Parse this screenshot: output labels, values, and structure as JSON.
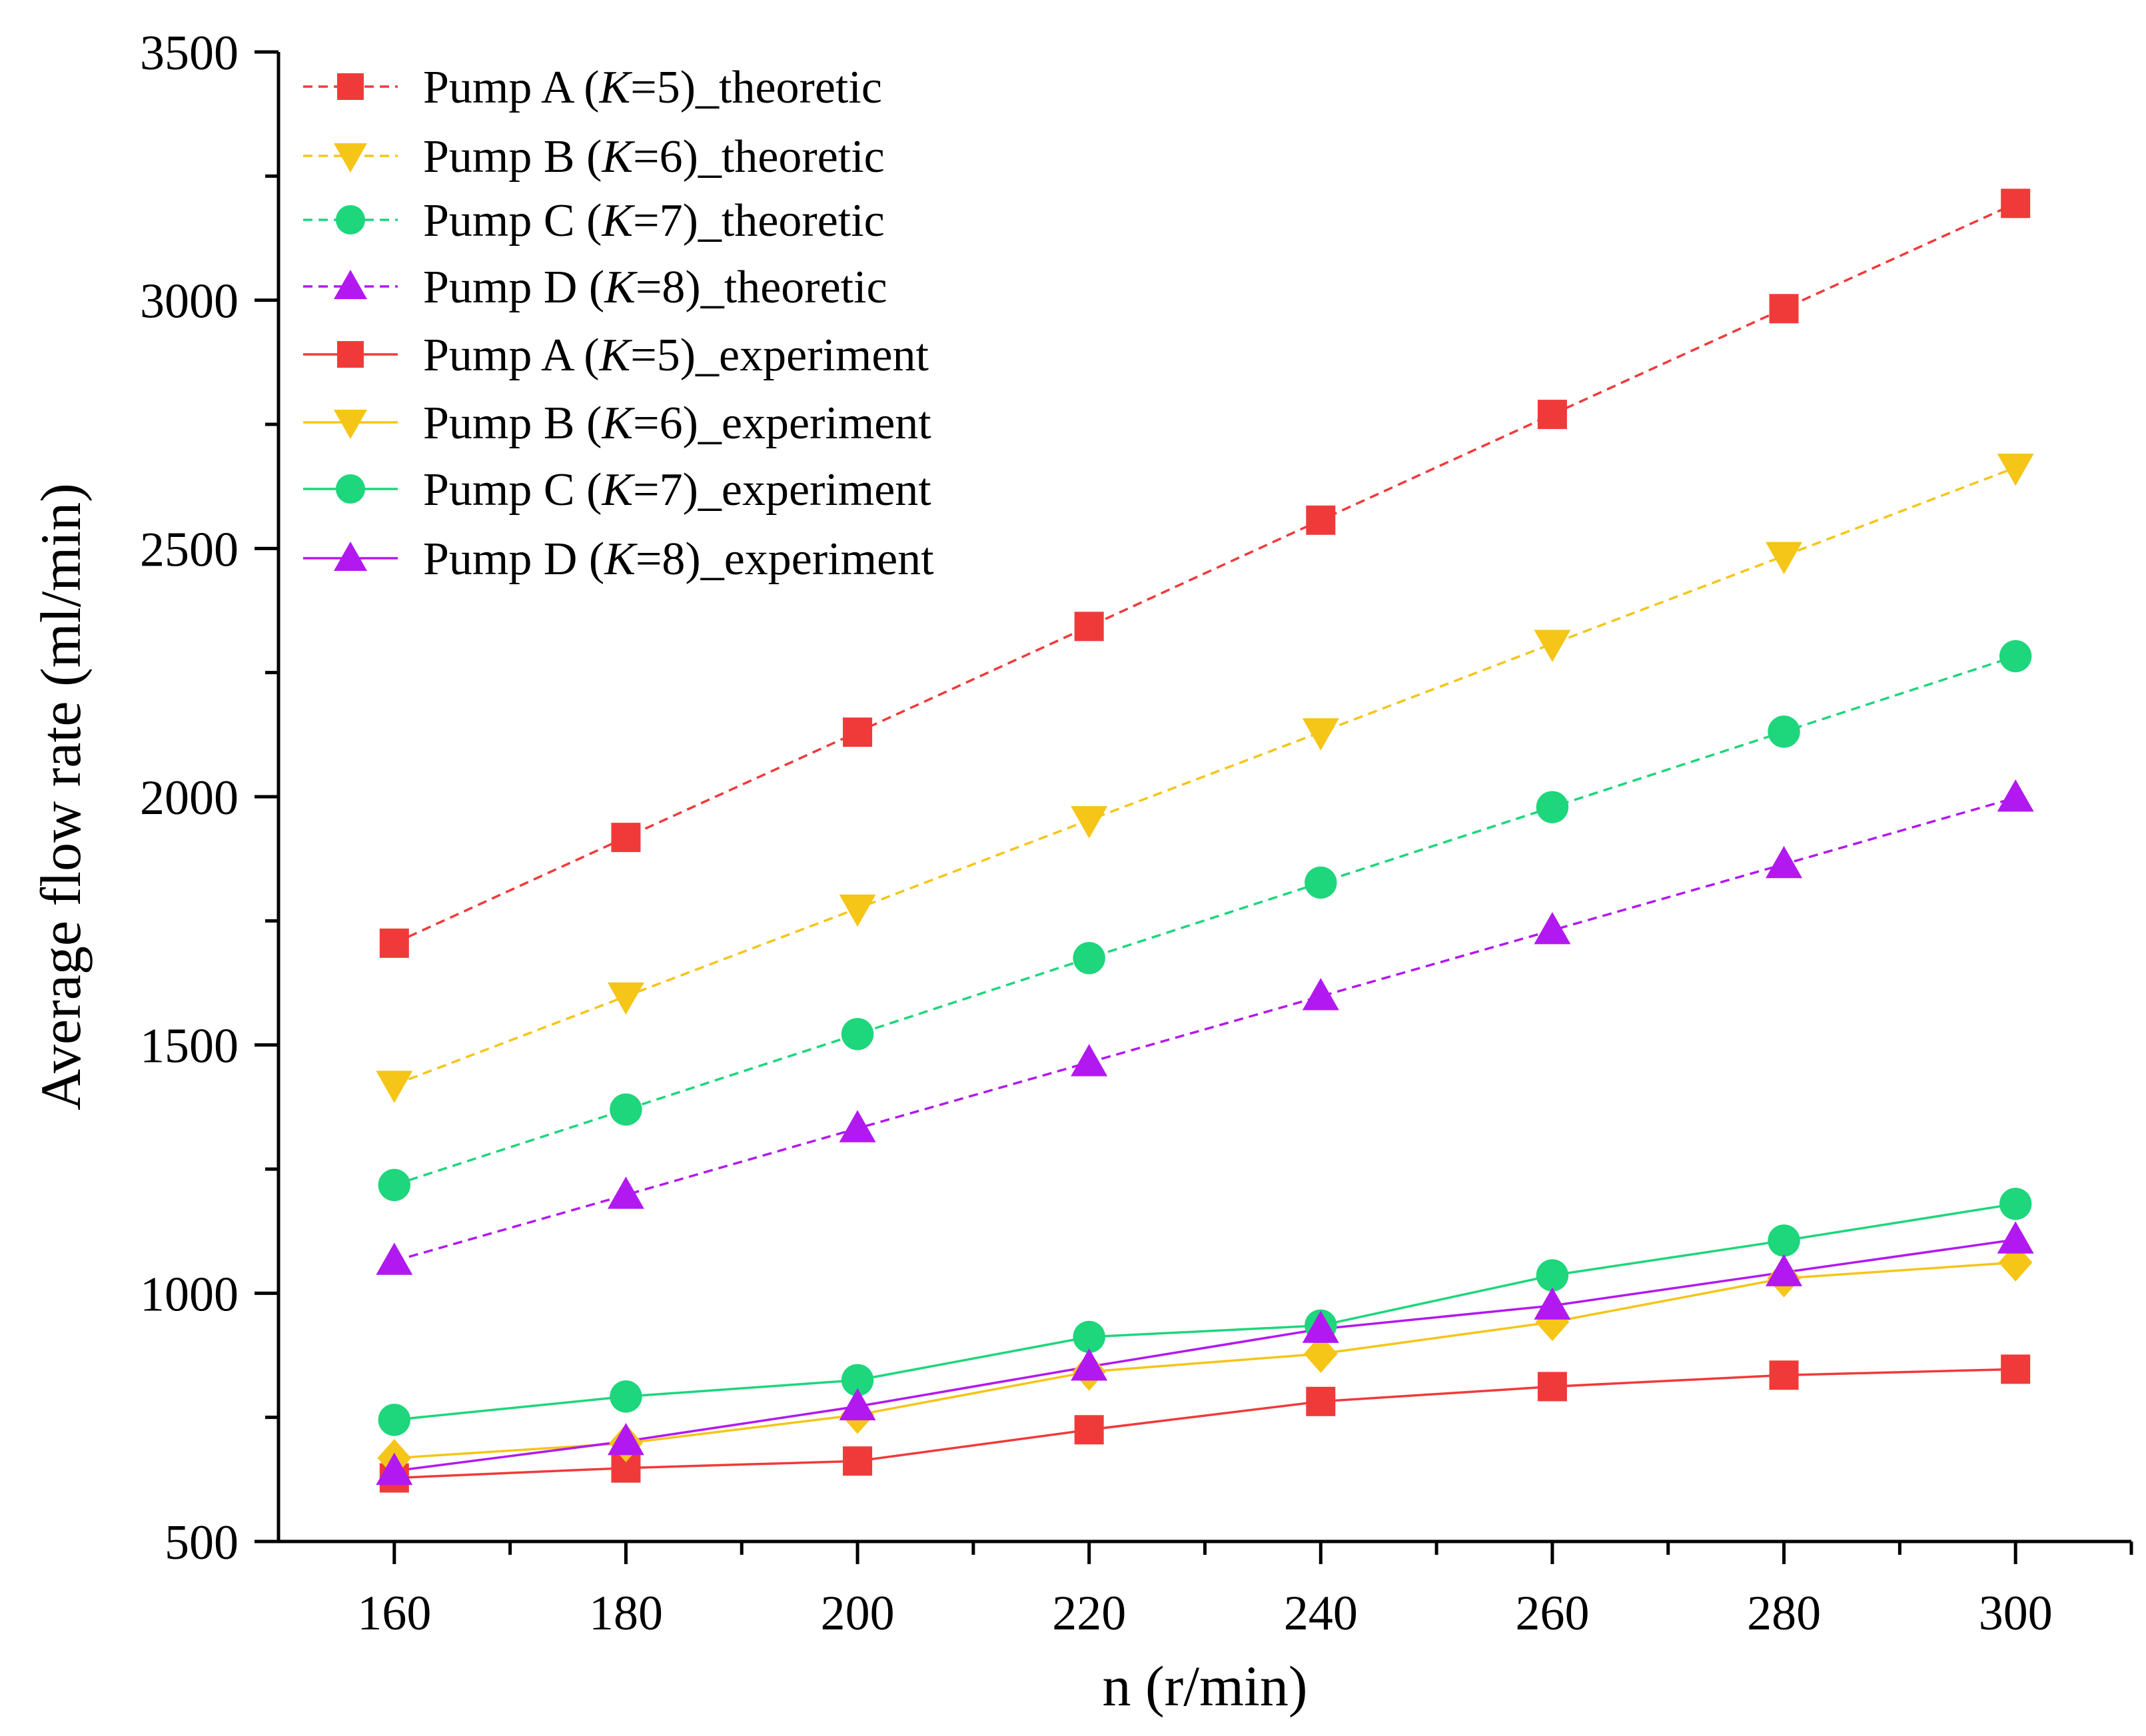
{
  "chart_data": {
    "type": "line",
    "title": "",
    "xlabel": "n (r/min)",
    "ylabel": "Average flow rate (ml/min)",
    "xlim": [
      150,
      310
    ],
    "ylim": [
      500,
      3500
    ],
    "xticks": [
      160,
      180,
      200,
      220,
      240,
      260,
      280,
      300
    ],
    "yticks": [
      500,
      1000,
      1500,
      2000,
      2500,
      3000,
      3500
    ],
    "grid": false,
    "legend_position": "top-left",
    "x": [
      160,
      180,
      200,
      220,
      240,
      260,
      280,
      300
    ],
    "series": [
      {
        "name": "Pump A (K=5)_theoretic",
        "label_prefix": "Pump A (",
        "label_italic": "K",
        "label_suffix": "=5)_theoretic",
        "color": "#f03a3a",
        "line_style": "dashed",
        "marker": "square",
        "values": [
          1705,
          1918,
          2130,
          2343,
          2557,
          2770,
          2983,
          3195
        ]
      },
      {
        "name": "Pump B (K=6)_theoretic",
        "label_prefix": "Pump B (",
        "label_italic": "K",
        "label_suffix": "=6)_theoretic",
        "color": "#f5c518",
        "line_style": "dashed",
        "marker": "triangle-down",
        "values": [
          1420,
          1598,
          1775,
          1953,
          2130,
          2308,
          2485,
          2663
        ]
      },
      {
        "name": "Pump C (K=7)_theoretic",
        "label_prefix": "Pump C (",
        "label_italic": "K",
        "label_suffix": "=7)_theoretic",
        "color": "#1ed67c",
        "line_style": "dashed",
        "marker": "circle",
        "values": [
          1218,
          1370,
          1522,
          1675,
          1827,
          1979,
          2131,
          2283
        ]
      },
      {
        "name": "Pump D (K=8)_theoretic",
        "label_prefix": "Pump D (",
        "label_italic": "K",
        "label_suffix": "=8)_theoretic",
        "color": "#b219f0",
        "line_style": "dashed",
        "marker": "triangle-up",
        "values": [
          1065,
          1198,
          1332,
          1465,
          1598,
          1731,
          1864,
          1998
        ]
      },
      {
        "name": "Pump A (K=5)_experiment",
        "label_prefix": "Pump A (",
        "label_italic": "K",
        "label_suffix": "=5)_experiment",
        "color": "#f03a3a",
        "line_style": "solid",
        "marker": "square",
        "values": [
          628,
          648,
          662,
          725,
          782,
          812,
          835,
          847
        ]
      },
      {
        "name": "Pump B (K=6)_experiment",
        "label_prefix": "Pump B (",
        "label_italic": "K",
        "label_suffix": "=6)_experiment",
        "color": "#f5c518",
        "line_style": "solid",
        "marker": "diamond",
        "legend_marker": "triangle-down",
        "values": [
          668,
          698,
          755,
          842,
          878,
          942,
          1030,
          1062
        ]
      },
      {
        "name": "Pump C (K=7)_experiment",
        "label_prefix": "Pump C (",
        "label_italic": "K",
        "label_suffix": "=7)_experiment",
        "color": "#1ed67c",
        "line_style": "solid",
        "marker": "circle",
        "values": [
          745,
          792,
          825,
          912,
          935,
          1036,
          1106,
          1180
        ]
      },
      {
        "name": "Pump D (K=8)_experiment",
        "label_prefix": "Pump D (",
        "label_italic": "K",
        "label_suffix": "=8)_experiment",
        "color": "#b219f0",
        "line_style": "solid",
        "marker": "triangle-up",
        "values": [
          642,
          702,
          772,
          852,
          928,
          975,
          1042,
          1108
        ]
      }
    ]
  }
}
